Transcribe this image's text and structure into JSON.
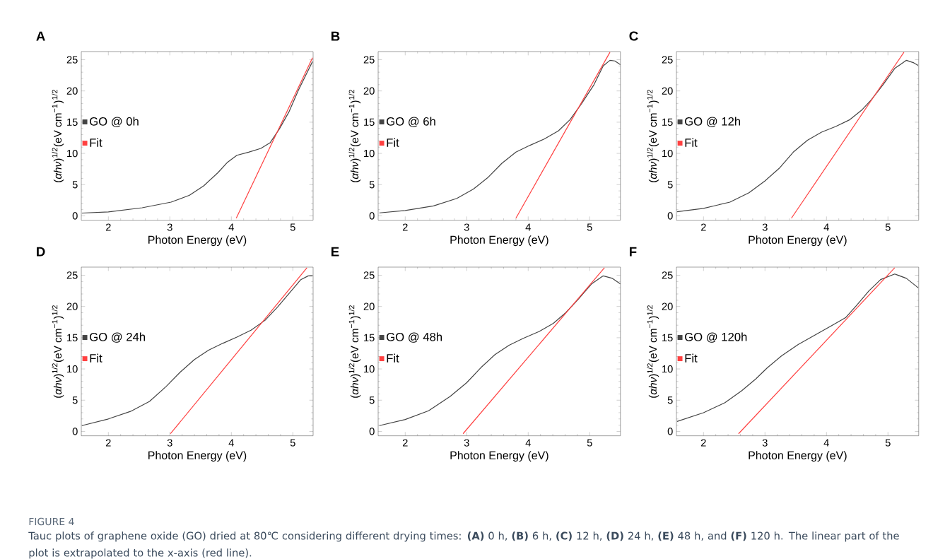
{
  "chart_data": [
    {
      "type": "line",
      "title": "A",
      "xlabel": "Photon Energy (eV)",
      "ylabel": "(*αhν*)$^{1/2}$(eV cm$^{−1}$)$^{1/2}$",
      "xlim": [
        1.56,
        5.33
      ],
      "ylim": [
        -0.7,
        26.3
      ],
      "xticks": [
        2,
        3,
        4,
        5
      ],
      "yticks": [
        0,
        5,
        10,
        15,
        20,
        25
      ],
      "legend": "left",
      "series": [
        {
          "name": "GO @ 0h",
          "color": "#444444",
          "x": [
            1.57,
            2.0,
            2.55,
            3.02,
            3.32,
            3.55,
            3.78,
            3.94,
            4.09,
            4.28,
            4.48,
            4.63,
            4.78,
            4.94,
            5.09,
            5.21,
            5.32
          ],
          "values": [
            0.45,
            0.63,
            1.3,
            2.2,
            3.3,
            4.8,
            6.9,
            8.6,
            9.7,
            10.2,
            10.8,
            11.7,
            13.9,
            16.7,
            20.1,
            22.5,
            24.7
          ]
        },
        {
          "name": "Fit",
          "color": "#ff4040",
          "x": [
            4.08,
            5.32
          ],
          "values": [
            -0.37,
            25.3
          ]
        }
      ]
    },
    {
      "type": "line",
      "title": "B",
      "xlabel": "Photon Energy (eV)",
      "ylabel": "(*αhν*)$^{1/2}$(eV cm$^{−1}$)$^{1/2}$",
      "xlim": [
        1.56,
        5.5
      ],
      "ylim": [
        -0.7,
        26.3
      ],
      "xticks": [
        2,
        3,
        4,
        5
      ],
      "yticks": [
        0,
        5,
        10,
        15,
        20,
        25
      ],
      "legend": "left",
      "series": [
        {
          "name": "GO @ 6h",
          "color": "#444444",
          "x": [
            1.58,
            2.0,
            2.46,
            2.84,
            3.11,
            3.34,
            3.57,
            3.8,
            4.03,
            4.26,
            4.49,
            4.68,
            4.87,
            5.07,
            5.22,
            5.33,
            5.41,
            5.5
          ],
          "values": [
            0.48,
            0.85,
            1.6,
            2.8,
            4.3,
            6.1,
            8.4,
            10.2,
            11.3,
            12.3,
            13.6,
            15.4,
            18.0,
            21.0,
            24.0,
            24.9,
            24.8,
            24.2
          ]
        },
        {
          "name": "Fit",
          "color": "#ff4040",
          "x": [
            3.8,
            5.33
          ],
          "values": [
            -0.37,
            26.2
          ]
        }
      ]
    },
    {
      "type": "line",
      "title": "C",
      "xlabel": "Photon Energy (eV)",
      "ylabel": "(*αhν*)$^{1/2}$(eV cm$^{−1}$)$^{1/2}$",
      "xlim": [
        1.56,
        5.5
      ],
      "ylim": [
        -0.7,
        26.3
      ],
      "xticks": [
        2,
        3,
        4,
        5
      ],
      "yticks": [
        0,
        5,
        10,
        15,
        20,
        25
      ],
      "legend": "left",
      "series": [
        {
          "name": "GO @ 12h",
          "color": "#444444",
          "x": [
            1.57,
            2.0,
            2.43,
            2.74,
            3.0,
            3.23,
            3.46,
            3.69,
            3.92,
            4.15,
            4.38,
            4.57,
            4.73,
            4.92,
            5.11,
            5.3,
            5.42,
            5.49
          ],
          "values": [
            0.67,
            1.2,
            2.2,
            3.7,
            5.6,
            7.6,
            10.2,
            12.1,
            13.4,
            14.3,
            15.4,
            16.9,
            18.6,
            21.0,
            23.6,
            24.9,
            24.5,
            24.1
          ]
        },
        {
          "name": "Fit",
          "color": "#ff4040",
          "x": [
            3.43,
            5.26
          ],
          "values": [
            -0.37,
            26.2
          ]
        }
      ]
    },
    {
      "type": "line",
      "title": "D",
      "xlabel": "Photon Energy (eV)",
      "ylabel": "(*αhν*)$^{1/2}$(eV cm$^{−1}$)$^{1/2}$",
      "xlim": [
        1.56,
        5.33
      ],
      "ylim": [
        -0.7,
        26.3
      ],
      "xticks": [
        2,
        3,
        4,
        5
      ],
      "yticks": [
        0,
        5,
        10,
        15,
        20,
        25
      ],
      "legend": "left",
      "series": [
        {
          "name": "GO @ 24h",
          "color": "#444444",
          "x": [
            1.57,
            2.0,
            2.36,
            2.67,
            2.94,
            3.17,
            3.4,
            3.63,
            3.86,
            4.09,
            4.32,
            4.55,
            4.75,
            4.94,
            5.13,
            5.25,
            5.32
          ],
          "values": [
            0.93,
            2.0,
            3.2,
            4.8,
            7.2,
            9.5,
            11.5,
            13.0,
            14.1,
            15.1,
            16.2,
            17.8,
            19.9,
            22.1,
            24.3,
            24.9,
            24.9
          ]
        },
        {
          "name": "Fit",
          "color": "#ff4040",
          "x": [
            3.01,
            5.23
          ],
          "values": [
            -0.37,
            26.2
          ]
        }
      ]
    },
    {
      "type": "line",
      "title": "E",
      "xlabel": "Photon Energy (eV)",
      "ylabel": "(*αhν*)$^{1/2}$(eV cm$^{−1}$)$^{1/2}$",
      "xlim": [
        1.56,
        5.5
      ],
      "ylim": [
        -0.7,
        26.3
      ],
      "xticks": [
        2,
        3,
        4,
        5
      ],
      "yticks": [
        0,
        5,
        10,
        15,
        20,
        25
      ],
      "legend": "left",
      "series": [
        {
          "name": "GO @ 48h",
          "color": "#444444",
          "x": [
            1.58,
            2.0,
            2.38,
            2.73,
            3.0,
            3.23,
            3.46,
            3.69,
            3.92,
            4.18,
            4.41,
            4.61,
            4.8,
            5.03,
            5.22,
            5.37,
            5.5
          ],
          "values": [
            0.93,
            1.9,
            3.3,
            5.6,
            7.8,
            10.2,
            12.3,
            13.8,
            14.9,
            16.0,
            17.3,
            19.0,
            21.0,
            23.6,
            24.9,
            24.5,
            23.6
          ]
        },
        {
          "name": "Fit",
          "color": "#ff4040",
          "x": [
            2.94,
            5.24
          ],
          "values": [
            -0.37,
            26.2
          ]
        }
      ]
    },
    {
      "type": "line",
      "title": "F",
      "xlabel": "Photon Energy (eV)",
      "ylabel": "(*αhν*)$^{1/2}$(eV cm$^{−1}$)$^{1/2}$",
      "xlim": [
        1.56,
        5.5
      ],
      "ylim": [
        -0.7,
        26.3
      ],
      "xticks": [
        2,
        3,
        4,
        5
      ],
      "yticks": [
        0,
        5,
        10,
        15,
        20,
        25
      ],
      "legend": "left",
      "series": [
        {
          "name": "GO @ 120h",
          "color": "#444444",
          "x": [
            1.57,
            2.0,
            2.35,
            2.62,
            2.85,
            3.04,
            3.27,
            3.54,
            3.81,
            4.08,
            4.31,
            4.5,
            4.69,
            4.88,
            5.11,
            5.3,
            5.49
          ],
          "values": [
            1.6,
            3.0,
            4.6,
            6.5,
            8.4,
            10.2,
            12.1,
            13.9,
            15.4,
            16.9,
            18.2,
            20.3,
            22.5,
            24.3,
            25.2,
            24.5,
            23.0
          ]
        },
        {
          "name": "Fit",
          "color": "#ff4040",
          "x": [
            2.57,
            5.11
          ],
          "values": [
            -0.37,
            26.2
          ]
        }
      ]
    },
    {
      "type": "other",
      "annotations": [
        "FIGURE 4",
        "Tauc plots of graphene oxide (GO) dried at 80℃ considering different drying times: **(A)** 0 h, **(B)** 6 h, **(C)** 12 h, **(D)** 24 h, **(E)** 48 h, and **(F)** 120 h. The linear part of the plot is extrapolated to the x-axis (red line)."
      ]
    }
  ]
}
